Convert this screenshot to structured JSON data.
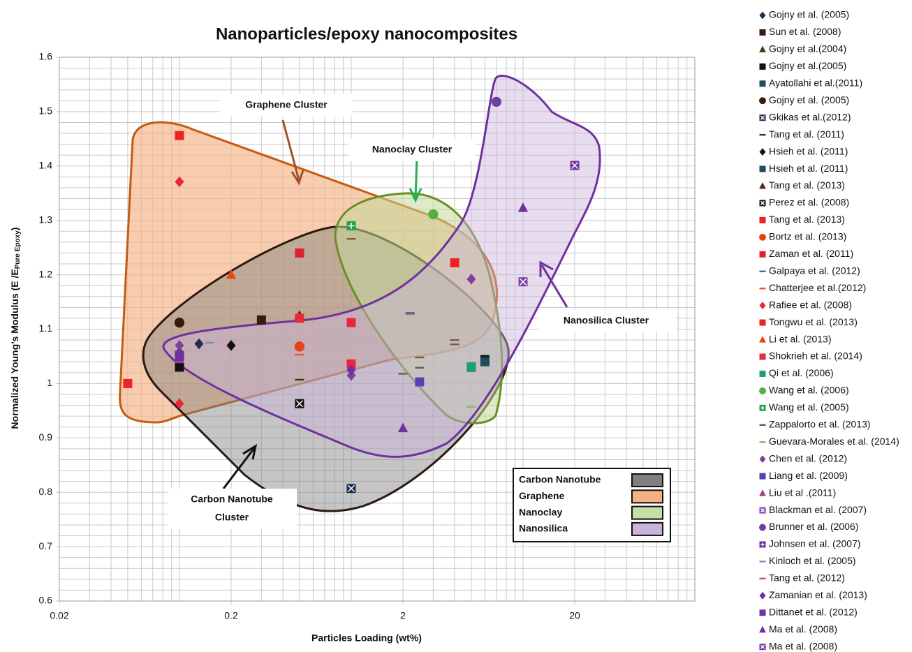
{
  "chart_data": {
    "type": "scatter",
    "title": "Nanoparticles/epoxy nanocomposites",
    "xlabel": "Particles Loading (wt%)",
    "ylabel": {
      "main": "Normalized Young’s Modulus (E /E",
      "sub": "Pure Epoxy",
      "end": ")"
    },
    "xscale": "log",
    "xlim": [
      0.02,
      100
    ],
    "xticks": [
      0.02,
      0.2,
      2,
      20
    ],
    "xgrid": [
      0.03,
      0.04,
      0.05,
      0.06,
      0.07,
      0.08,
      0.09,
      0.1,
      0.3,
      0.4,
      0.5,
      0.6,
      0.7,
      0.8,
      0.9,
      1,
      3,
      4,
      5,
      6,
      7,
      8,
      9,
      10,
      30,
      40,
      50,
      60,
      70,
      80,
      90
    ],
    "ylim": [
      0.6,
      1.6
    ],
    "yticks": [
      0.6,
      0.7,
      0.8,
      0.9,
      1,
      1.1,
      1.2,
      1.3,
      1.4,
      1.5,
      1.6
    ],
    "ygrid": [
      0.62,
      0.64,
      0.66,
      0.68,
      0.72,
      0.74,
      0.76,
      0.78,
      0.82,
      0.84,
      0.86,
      0.88,
      0.92,
      0.94,
      0.96,
      0.98,
      1.02,
      1.04,
      1.06,
      1.08,
      1.12,
      1.14,
      1.16,
      1.18,
      1.22,
      1.24,
      1.26,
      1.28,
      1.32,
      1.34,
      1.36,
      1.38,
      1.42,
      1.44,
      1.46,
      1.48,
      1.52,
      1.54,
      1.56,
      1.58
    ],
    "grid": true,
    "annotations": [
      [
        "Graphene Cluster"
      ],
      [
        "Nanoclay Cluster"
      ],
      [
        "Nanosilica Cluster"
      ],
      [
        "Carbon Nanotube",
        "Cluster"
      ]
    ],
    "cluster_legend": [
      {
        "name": "Carbon Nanotube",
        "color": "#7f7f7f"
      },
      {
        "name": "Graphene",
        "color": "#f4b183"
      },
      {
        "name": "Nanoclay",
        "color": "#c5e0a5"
      },
      {
        "name": "Nanosilica",
        "color": "#c9b3dc"
      }
    ],
    "series": [
      {
        "name": "Gojny et al. (2005)",
        "marker": "diamond",
        "color": "#1f2d4e",
        "x": [
          0.13
        ],
        "values": [
          1.073
        ]
      },
      {
        "name": "Sun et al. (2008)",
        "marker": "square",
        "color": "#3b1a10",
        "x": [
          0.3
        ],
        "values": [
          1.117
        ]
      },
      {
        "name": "Gojny et al.(2004)",
        "marker": "triangle",
        "color": "#2a4a1a",
        "x": [
          0.1
        ],
        "values": [
          1.06
        ]
      },
      {
        "name": "Gojny et al.(2005)",
        "marker": "square",
        "color": "#111111",
        "x": [
          0.1,
          6
        ],
        "values": [
          1.03,
          1.044
        ]
      },
      {
        "name": "Ayatollahi et al.(2011)",
        "marker": "square",
        "color": "#1f4e5a",
        "x": [
          6
        ],
        "values": [
          1.04
        ]
      },
      {
        "name": "Gojny et al. (2005)",
        "marker": "circle",
        "color": "#3a1a0a",
        "x": [
          0.1
        ],
        "values": [
          1.112
        ]
      },
      {
        "name": "Gkikas et al.(2012)",
        "marker": "xsquare",
        "color": "#1f2d4e",
        "x": [
          1
        ],
        "values": [
          0.807
        ]
      },
      {
        "name": "Tang et al. (2011)",
        "marker": "dash",
        "color": "#3a3a10",
        "x": [
          0.5
        ],
        "values": [
          1.007
        ]
      },
      {
        "name": "Hsieh et al. (2011)",
        "marker": "diamond",
        "color": "#111111",
        "x": [
          0.2
        ],
        "values": [
          1.07
        ]
      },
      {
        "name": "Hsieh et al. (2011)",
        "marker": "square",
        "color": "#1f4e5a",
        "x": [
          5
        ],
        "values": [
          1.03
        ]
      },
      {
        "name": "Tang et al. (2013)",
        "marker": "triangle",
        "color": "#5a2a10",
        "x": [
          0.5
        ],
        "values": [
          1.125
        ]
      },
      {
        "name": "Perez et al. (2008)",
        "marker": "xsquare",
        "color": "#111111",
        "x": [
          0.5
        ],
        "values": [
          0.963
        ]
      },
      {
        "name": "Tang et al. (2013)",
        "marker": "square",
        "color": "#ee2222",
        "x": [
          0.05
        ],
        "values": [
          1.0
        ]
      },
      {
        "name": "Bortz et al. (2013)",
        "marker": "circle",
        "color": "#e8401a",
        "x": [
          0.5
        ],
        "values": [
          1.068
        ]
      },
      {
        "name": "Zaman et al. (2011)",
        "marker": "square",
        "color": "#dd2233",
        "x": [
          0.5
        ],
        "values": [
          1.24
        ]
      },
      {
        "name": "Galpaya et al. (2012)",
        "marker": "dash",
        "color": "#3070c0",
        "x": [
          2.2
        ],
        "values": [
          1.13
        ]
      },
      {
        "name": "Chatterjee et al.(2012)",
        "marker": "dash",
        "color": "#ee5522",
        "x": [
          0.5
        ],
        "values": [
          1.053
        ]
      },
      {
        "name": "Rafiee et al. (2008)",
        "marker": "diamond",
        "color": "#e8283a",
        "x": [
          0.1,
          0.1
        ],
        "values": [
          1.371,
          0.963
        ]
      },
      {
        "name": "Tongwu et al. (2013)",
        "marker": "square",
        "color": "#ee2222",
        "x": [
          0.1,
          4
        ],
        "values": [
          1.456,
          1.222
        ]
      },
      {
        "name": "Li et al. (2013)",
        "marker": "triangle",
        "color": "#ee4411",
        "x": [
          0.2
        ],
        "values": [
          1.2
        ]
      },
      {
        "name": "Shokrieh et al. (2014)",
        "marker": "square",
        "color": "#e8283a",
        "x": [
          0.5,
          1,
          1
        ],
        "values": [
          1.12,
          1.112,
          1.036
        ]
      },
      {
        "name": "Qi et al. (2006)",
        "marker": "square",
        "color": "#20a070",
        "x": [
          5
        ],
        "values": [
          1.031
        ]
      },
      {
        "name": "Wang et al. (2006)",
        "marker": "circle",
        "color": "#50b040",
        "x": [
          3
        ],
        "values": [
          1.311
        ]
      },
      {
        "name": "Wang et al. (2005)",
        "marker": "plussquare",
        "color": "#20a050",
        "x": [
          1
        ],
        "values": [
          1.29
        ]
      },
      {
        "name": "Zappalorto et al. (2013)",
        "marker": "dash",
        "color": "#7a5a40",
        "x": [
          1,
          2,
          2.5,
          2.5,
          4,
          4
        ],
        "values": [
          1.266,
          1.018,
          1.048,
          1.029,
          1.08,
          1.072
        ]
      },
      {
        "name": "Guevara-Morales et al. (2014)",
        "marker": "dash",
        "color": "#80c060",
        "x": [
          5
        ],
        "values": [
          0.957
        ]
      },
      {
        "name": "Chen et al. (2012)",
        "marker": "diamond",
        "color": "#8040a0",
        "x": [
          0.1,
          1,
          5
        ],
        "values": [
          1.07,
          1.015,
          1.192
        ]
      },
      {
        "name": "Liang et al. (2009)",
        "marker": "square",
        "color": "#6040b0",
        "x": [
          2.5
        ],
        "values": [
          1.003
        ]
      },
      {
        "name": "Liu et al .(2011)",
        "marker": "triangle",
        "color": "#a04080",
        "x": [
          0.1
        ],
        "values": [
          1.045
        ]
      },
      {
        "name": "Blackman et al. (2007)",
        "marker": "xsquare",
        "color": "#8040b0",
        "x": [
          10
        ],
        "values": [
          1.187
        ]
      },
      {
        "name": "Brunner et al. (2006)",
        "marker": "circle",
        "color": "#7040a0",
        "x": [
          7
        ],
        "values": [
          1.518
        ]
      },
      {
        "name": "Johnsen et al. (2007)",
        "marker": "plussquare",
        "color": "#7030a0",
        "x": [
          0.1
        ],
        "values": [
          1.05
        ]
      },
      {
        "name": "Kinloch et al. (2005)",
        "marker": "dash",
        "color": "#7090c0",
        "x": [
          0.15
        ],
        "values": [
          1.075
        ]
      },
      {
        "name": "Tang et al. (2012)",
        "marker": "dash",
        "color": "#c05070",
        "x": [
          2.2
        ],
        "values": [
          1.128
        ]
      },
      {
        "name": "Zamanian et al. (2013)",
        "marker": "diamond",
        "color": "#7030a0",
        "x": [
          1
        ],
        "values": [
          1.025
        ]
      },
      {
        "name": "Dittanet et al. (2012)",
        "marker": "square",
        "color": "#7030a0",
        "x": [
          0.1
        ],
        "values": [
          1.052
        ]
      },
      {
        "name": "Ma et al. (2008)",
        "marker": "triangle",
        "color": "#7030a0",
        "x": [
          2,
          10
        ],
        "values": [
          0.918,
          1.323
        ]
      },
      {
        "name": "Ma et al. (2008)",
        "marker": "xsquare",
        "color": "#7030a0",
        "x": [
          20
        ],
        "values": [
          1.401
        ]
      }
    ]
  }
}
